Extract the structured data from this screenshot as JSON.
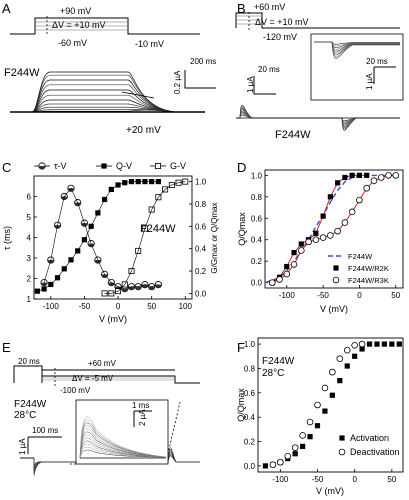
{
  "panels": {
    "A": {
      "letter": "A",
      "protocol": {
        "v_top": "+90 mV",
        "dv": "ΔV = +10 mV",
        "v_hold": "-60 mV",
        "v_tail": "-10 mV"
      },
      "construct": "F244W",
      "scale_time": "200 ms",
      "scale_current": "0.2 µA",
      "trace_label": "+20 mV",
      "trace_levels": [
        0.02,
        0.06,
        0.12,
        0.2,
        0.3,
        0.42,
        0.55,
        0.68,
        0.8,
        0.92,
        1.0
      ]
    },
    "B": {
      "letter": "B",
      "protocol": {
        "v_top": "+60 mV",
        "dv": "ΔV = +10 mV",
        "v_hold": "-120 mV"
      },
      "construct": "F244W",
      "scale_time_main": "20 ms",
      "scale_current_main": "1 µA",
      "inset_scale_time": "20 ms",
      "inset_scale_current": "1 µA"
    },
    "C": {
      "letter": "C",
      "construct": "F244W"
    },
    "D": {
      "letter": "D"
    },
    "E": {
      "letter": "E",
      "protocol": {
        "prepulse": "20 ms",
        "v_top": "+60 mV",
        "dv": "ΔV = -5 mV",
        "v_bottom": "-100 mV"
      },
      "construct": "F244W",
      "temperature": "28°C",
      "scale_time_main": "100 ms",
      "scale_current_main": "1 µA",
      "inset_scale_time": "1 ms",
      "inset_scale_current": "2 µA"
    },
    "F": {
      "letter": "F",
      "construct": "F244W",
      "temperature": "28°C"
    }
  },
  "chart_data": [
    {
      "panel": "C",
      "type": "scatter",
      "xlabel": "V (mV)",
      "ylabel": "τ (ms)",
      "ylabel_right": "G/Gmax or Q/Qmax",
      "xlim": [
        -125,
        110
      ],
      "ylim": [
        1,
        7
      ],
      "ylim_right": [
        -0.05,
        1.05
      ],
      "xticks": [
        -100,
        -50,
        0,
        50,
        100
      ],
      "yticks": [
        1,
        2,
        3,
        4,
        5,
        6
      ],
      "yticks_right": [
        0.0,
        0.2,
        0.4,
        0.6,
        0.8,
        1.0
      ],
      "legend": [
        "τ-V",
        "Q-V",
        "G-V"
      ],
      "series": [
        {
          "name": "τ-V",
          "axis": "left",
          "marker": "half-filled-circle",
          "x": [
            -110,
            -100,
            -90,
            -80,
            -70,
            -60,
            -50,
            -40,
            -30,
            -20,
            -10,
            0,
            10,
            20,
            30,
            40,
            50,
            60
          ],
          "y": [
            1.8,
            2.9,
            4.6,
            6.0,
            6.4,
            5.7,
            4.7,
            3.7,
            2.9,
            2.2,
            1.8,
            1.6,
            1.5,
            1.6,
            1.6,
            1.7,
            1.6,
            1.7
          ]
        },
        {
          "name": "Q-V",
          "axis": "right",
          "marker": "filled-square",
          "x": [
            -120,
            -110,
            -100,
            -90,
            -80,
            -70,
            -60,
            -50,
            -40,
            -30,
            -20,
            -10,
            0,
            10,
            20,
            30,
            40,
            50,
            60
          ],
          "y": [
            0.02,
            0.04,
            0.08,
            0.14,
            0.22,
            0.3,
            0.38,
            0.48,
            0.6,
            0.72,
            0.84,
            0.93,
            0.97,
            0.99,
            1.0,
            1.0,
            1.0,
            1.0,
            1.0
          ]
        },
        {
          "name": "G-V",
          "axis": "right",
          "marker": "open-square",
          "x": [
            -20,
            -10,
            0,
            10,
            20,
            30,
            40,
            50,
            60,
            70,
            80,
            90,
            100
          ],
          "y": [
            0.0,
            0.0,
            0.02,
            0.08,
            0.2,
            0.38,
            0.58,
            0.75,
            0.86,
            0.93,
            0.97,
            0.99,
            1.0
          ]
        }
      ]
    },
    {
      "panel": "D",
      "type": "scatter",
      "xlabel": "V (mV)",
      "ylabel": "Q/Qmax",
      "xlim": [
        -130,
        60
      ],
      "ylim": [
        -0.05,
        1.05
      ],
      "xticks": [
        -100,
        -50,
        0,
        50
      ],
      "yticks": [
        0.0,
        0.2,
        0.4,
        0.6,
        0.8,
        1.0
      ],
      "legend": [
        "F244W",
        "F244W/R2K",
        "F244W/R3K"
      ],
      "series": [
        {
          "name": "F244W",
          "style": "dashed-line",
          "color": "#3050d8",
          "x": [
            -130,
            -120,
            -110,
            -100,
            -90,
            -80,
            -70,
            -60,
            -50,
            -40,
            -30,
            -20,
            -10,
            0,
            10,
            20,
            30,
            40,
            50
          ],
          "y": [
            0.0,
            0.02,
            0.05,
            0.11,
            0.2,
            0.3,
            0.4,
            0.52,
            0.63,
            0.75,
            0.86,
            0.94,
            0.98,
            0.99,
            1.0,
            1.0,
            1.0,
            1.0,
            1.0
          ]
        },
        {
          "name": "F244W/R2K",
          "marker": "filled-square",
          "x": [
            -120,
            -110,
            -100,
            -90,
            -80,
            -70,
            -60,
            -50,
            -40,
            -30,
            -20,
            -10,
            0,
            10
          ],
          "y": [
            0.0,
            0.05,
            0.15,
            0.28,
            0.36,
            0.4,
            0.46,
            0.62,
            0.8,
            0.93,
            0.98,
            1.0,
            1.0,
            1.0
          ]
        },
        {
          "name": "F244W/R3K",
          "marker": "open-circle",
          "x": [
            -120,
            -110,
            -100,
            -90,
            -80,
            -70,
            -60,
            -50,
            -40,
            -30,
            -20,
            -10,
            0,
            10,
            20,
            30,
            40,
            50
          ],
          "y": [
            0.0,
            0.03,
            0.08,
            0.17,
            0.3,
            0.38,
            0.4,
            0.42,
            0.44,
            0.48,
            0.56,
            0.66,
            0.77,
            0.88,
            0.95,
            0.98,
            1.0,
            1.0
          ]
        }
      ]
    },
    {
      "panel": "F",
      "type": "scatter",
      "xlabel": "V (mV)",
      "ylabel": "Q/Qmax",
      "xlim": [
        -130,
        65
      ],
      "ylim": [
        -0.05,
        1.05
      ],
      "xticks": [
        -100,
        -50,
        0,
        50
      ],
      "yticks": [
        0.0,
        0.2,
        0.4,
        0.6,
        0.8,
        1.0
      ],
      "legend": [
        "Activation",
        "Deactivation"
      ],
      "series": [
        {
          "name": "Activation",
          "marker": "filled-square",
          "x": [
            -120,
            -110,
            -100,
            -90,
            -80,
            -70,
            -60,
            -50,
            -40,
            -30,
            -20,
            -10,
            0,
            10,
            20,
            30,
            40,
            50,
            60
          ],
          "y": [
            0.0,
            0.01,
            0.03,
            0.06,
            0.1,
            0.16,
            0.24,
            0.33,
            0.45,
            0.58,
            0.7,
            0.82,
            0.9,
            0.96,
            1.0,
            1.0,
            1.0,
            1.0,
            1.0
          ]
        },
        {
          "name": "Deactivation",
          "marker": "open-circle",
          "x": [
            -110,
            -100,
            -90,
            -80,
            -70,
            -60,
            -50,
            -40,
            -30,
            -20,
            -10,
            0,
            10
          ],
          "y": [
            0.01,
            0.03,
            0.08,
            0.15,
            0.25,
            0.36,
            0.5,
            0.64,
            0.77,
            0.88,
            0.95,
            0.99,
            1.0
          ]
        }
      ]
    }
  ]
}
